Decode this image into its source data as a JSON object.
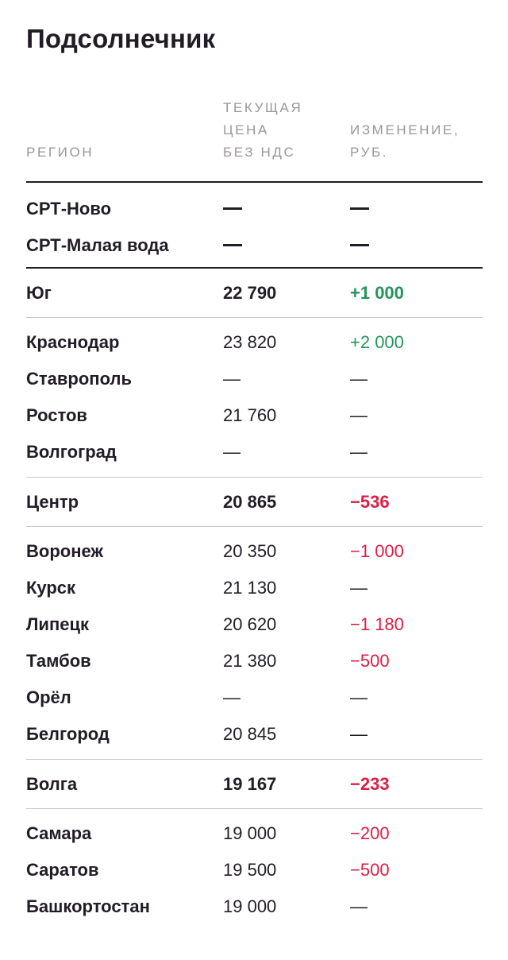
{
  "title": "Подсолнечник",
  "headers": {
    "region": "РЕГИОН",
    "price": "ТЕКУЩАЯ\nЦЕНА\nБЕЗ НДС",
    "change": "ИЗМЕНЕНИЕ,\nРУБ."
  },
  "spt": [
    {
      "name": "СРТ-Ново",
      "price": "—",
      "change": "—"
    },
    {
      "name": "СРТ-Малая вода",
      "price": "—",
      "change": "—"
    }
  ],
  "groups": [
    {
      "summary": {
        "name": "Юг",
        "price": "22 790",
        "change": "+1 000",
        "trend": "up"
      },
      "rows": [
        {
          "name": "Краснодар",
          "price": "23 820",
          "change": "+2 000",
          "trend": "up"
        },
        {
          "name": "Ставрополь",
          "price": "—",
          "change": "—",
          "trend": "none"
        },
        {
          "name": "Ростов",
          "price": "21 760",
          "change": "—",
          "trend": "none"
        },
        {
          "name": "Волгоград",
          "price": "—",
          "change": "—",
          "trend": "none"
        }
      ]
    },
    {
      "summary": {
        "name": "Центр",
        "price": "20 865",
        "change": "−536",
        "trend": "down"
      },
      "rows": [
        {
          "name": "Воронеж",
          "price": "20 350",
          "change": "−1 000",
          "trend": "down"
        },
        {
          "name": "Курск",
          "price": "21 130",
          "change": "—",
          "trend": "none"
        },
        {
          "name": "Липецк",
          "price": "20 620",
          "change": "−1 180",
          "trend": "down"
        },
        {
          "name": "Тамбов",
          "price": "21 380",
          "change": "−500",
          "trend": "down"
        },
        {
          "name": "Орёл",
          "price": "—",
          "change": "—",
          "trend": "none"
        },
        {
          "name": "Белгород",
          "price": "20 845",
          "change": "—",
          "trend": "none"
        }
      ]
    },
    {
      "summary": {
        "name": "Волга",
        "price": "19 167",
        "change": "−233",
        "trend": "down"
      },
      "rows": [
        {
          "name": "Самара",
          "price": "19 000",
          "change": "−200",
          "trend": "down"
        },
        {
          "name": "Саратов",
          "price": "19 500",
          "change": "−500",
          "trend": "down"
        },
        {
          "name": "Башкортостан",
          "price": "19 000",
          "change": "—",
          "trend": "none"
        }
      ]
    }
  ],
  "colors": {
    "text": "#221c26",
    "header": "#9a959b",
    "positive": "#25935a",
    "negative": "#dc1e46",
    "divider": "#c9c7ca"
  }
}
